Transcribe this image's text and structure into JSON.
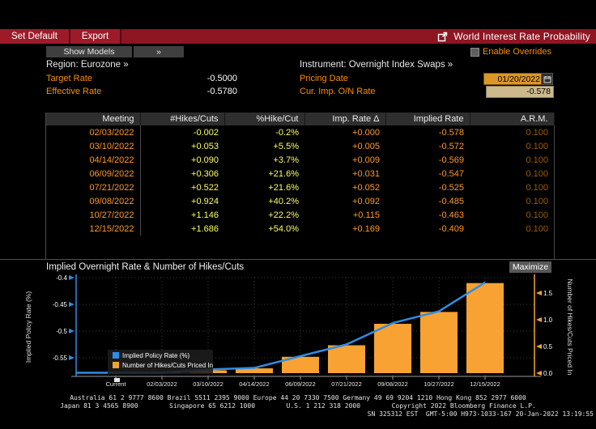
{
  "colors": {
    "red_bar": "#8e1522",
    "red_button": "#9d1b29",
    "orange": "#ff8c00",
    "orange_data": "#ff9828",
    "yellow": "#ffff60",
    "blue": "#2e8de5",
    "bar_orange": "#f7a233",
    "amber_field": "#dd9728",
    "tan_field": "#cdb98c"
  },
  "toolbar": {
    "set_default": "Set Default",
    "export": "Export",
    "title": "World Interest Rate Probability"
  },
  "subbar": {
    "show_models": "Show Models",
    "chevron": "»",
    "enable_overrides": "Enable Overrides"
  },
  "settings": {
    "region_label": "Region: Eurozone »",
    "instrument_label": "Instrument: Overnight Index Swaps »",
    "target_rate": {
      "label": "Target Rate",
      "value": "-0.5000"
    },
    "effective_rate": {
      "label": "Effective Rate",
      "value": "-0.5780"
    },
    "pricing_date": {
      "label": "Pricing Date",
      "value": "01/20/2022"
    },
    "cur_imp_rate": {
      "label": "Cur. Imp. O/N Rate",
      "value": "-0.578"
    }
  },
  "table": {
    "headers": [
      "Meeting",
      "#Hikes/Cuts",
      "%Hike/Cut",
      "Imp. Rate Δ",
      "Implied Rate",
      "A.R.M."
    ],
    "rows": [
      [
        "02/03/2022",
        "-0.002",
        "-0.2%",
        "+0.000",
        "-0.578",
        "0.100"
      ],
      [
        "03/10/2022",
        "+0.053",
        "+5.5%",
        "+0.005",
        "-0.572",
        "0.100"
      ],
      [
        "04/14/2022",
        "+0.090",
        "+3.7%",
        "+0.009",
        "-0.569",
        "0.100"
      ],
      [
        "06/09/2022",
        "+0.306",
        "+21.6%",
        "+0.031",
        "-0.547",
        "0.100"
      ],
      [
        "07/21/2022",
        "+0.522",
        "+21.6%",
        "+0.052",
        "-0.525",
        "0.100"
      ],
      [
        "09/08/2022",
        "+0.924",
        "+40.2%",
        "+0.092",
        "-0.485",
        "0.100"
      ],
      [
        "10/27/2022",
        "+1.146",
        "+22.2%",
        "+0.115",
        "-0.463",
        "0.100"
      ],
      [
        "12/15/2022",
        "+1.686",
        "+54.0%",
        "+0.169",
        "-0.409",
        "0.100"
      ]
    ]
  },
  "chart": {
    "title": "Implied Overnight Rate & Number of Hikes/Cuts",
    "maximize": "Maximize"
  },
  "chart_data": {
    "type": "bar",
    "title": "Implied Overnight Rate & Number of Hikes/Cuts",
    "categories": [
      "Current",
      "02/03/2022",
      "03/10/2022",
      "04/14/2022",
      "06/09/2022",
      "07/21/2022",
      "09/08/2022",
      "10/27/2022",
      "12/15/2022"
    ],
    "series": [
      {
        "name": "Implied Policy Rate (%)",
        "type": "line",
        "axis": "left",
        "values": [
          -0.578,
          -0.578,
          -0.572,
          -0.569,
          -0.547,
          -0.525,
          -0.485,
          -0.463,
          -0.409
        ]
      },
      {
        "name": "Number of Hikes/Cuts Priced In",
        "type": "bar",
        "axis": "right",
        "values": [
          0.0,
          -0.002,
          0.053,
          0.09,
          0.306,
          0.522,
          0.924,
          1.146,
          1.686
        ]
      }
    ],
    "left_axis": {
      "label": "Implied Policy Rate (%)",
      "tick_labels": [
        "-0.4",
        "-0.45",
        "-0.5",
        "-0.55"
      ],
      "tick_values": [
        -0.4,
        -0.45,
        -0.5,
        -0.55
      ],
      "min": -0.585,
      "max": -0.4
    },
    "right_axis": {
      "label": "Number of Hikes/Cuts Priced In",
      "tick_labels": [
        "1.5",
        "1.0",
        "0.5",
        "0.0"
      ],
      "tick_values": [
        1.5,
        1.0,
        0.5,
        0.0
      ],
      "min": 0.0,
      "max": 1.85
    },
    "legend_position": "bottom-left",
    "grid": "dotted"
  },
  "footer": {
    "line1": "Australia 61 2 9777 8600 Brazil 5511 2395 9000 Europe 44 20 7330 7500 Germany 49 69 9204 1210 Hong Kong 852 2977 6000",
    "line2": "Japan 81 3 4565 8900        Singapore 65 6212 1000        U.S. 1 212 318 2000        Copyright 2022 Bloomberg Finance L.P.",
    "line3": "SN 325312 EST  GMT-5:00 H973-1033-167 20-Jan-2022 13:19:55"
  }
}
